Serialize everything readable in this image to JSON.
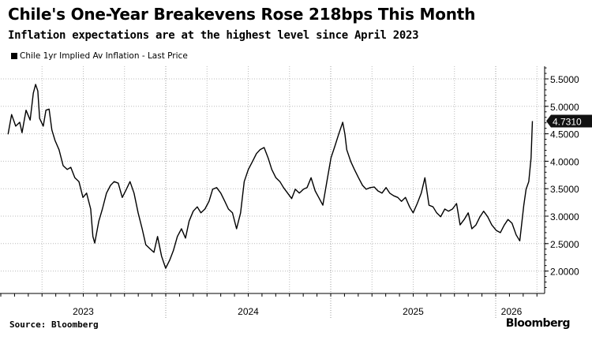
{
  "title": "Chile's One-Year Breakevens Rose 218bps This Month",
  "subtitle": "Inflation expectations are at the highest level since April 2023",
  "source": "Source: Bloomberg",
  "logo": "Bloomberg",
  "chart_data": {
    "type": "line",
    "title": "Chile's One-Year Breakevens Rose 218bps This Month",
    "subtitle": "Inflation expectations are at the highest level since April 2023",
    "legend_position": "top-left",
    "grid": true,
    "y_axis_side": "right",
    "ylim": [
      1.6,
      5.8
    ],
    "y_ticks": [
      "2.0000",
      "2.5000",
      "3.0000",
      "3.5000",
      "4.0000",
      "4.5000",
      "5.0000",
      "5.5000"
    ],
    "y_tick_values": [
      2.0,
      2.5,
      3.0,
      3.5,
      4.0,
      4.5,
      5.0,
      5.5
    ],
    "x_ticks": [
      "2023",
      "2024",
      "2025",
      "2026"
    ],
    "last_price_label": "4.7310",
    "line_color": "#000000",
    "series": [
      {
        "name": "Chile 1yr Implied Av Inflation - Last Price",
        "points": [
          [
            "2023-01-17",
            4.49
          ],
          [
            "2023-01-25",
            4.85
          ],
          [
            "2023-02-03",
            4.64
          ],
          [
            "2023-02-12",
            4.71
          ],
          [
            "2023-02-17",
            4.52
          ],
          [
            "2023-02-26",
            4.93
          ],
          [
            "2023-03-07",
            4.75
          ],
          [
            "2023-03-14",
            5.24
          ],
          [
            "2023-03-19",
            5.4
          ],
          [
            "2023-03-24",
            5.28
          ],
          [
            "2023-03-28",
            4.78
          ],
          [
            "2023-04-05",
            4.64
          ],
          [
            "2023-04-11",
            4.93
          ],
          [
            "2023-04-18",
            4.95
          ],
          [
            "2023-04-24",
            4.57
          ],
          [
            "2023-05-01",
            4.38
          ],
          [
            "2023-05-10",
            4.21
          ],
          [
            "2023-05-19",
            3.92
          ],
          [
            "2023-05-28",
            3.85
          ],
          [
            "2023-06-05",
            3.89
          ],
          [
            "2023-06-14",
            3.7
          ],
          [
            "2023-06-23",
            3.63
          ],
          [
            "2023-07-02",
            3.34
          ],
          [
            "2023-07-10",
            3.42
          ],
          [
            "2023-07-19",
            3.13
          ],
          [
            "2023-07-24",
            2.63
          ],
          [
            "2023-07-28",
            2.51
          ],
          [
            "2023-08-06",
            2.91
          ],
          [
            "2023-08-14",
            3.13
          ],
          [
            "2023-08-23",
            3.42
          ],
          [
            "2023-09-01",
            3.56
          ],
          [
            "2023-09-09",
            3.63
          ],
          [
            "2023-09-18",
            3.6
          ],
          [
            "2023-09-27",
            3.34
          ],
          [
            "2023-10-06",
            3.49
          ],
          [
            "2023-10-14",
            3.63
          ],
          [
            "2023-10-23",
            3.42
          ],
          [
            "2023-11-01",
            3.06
          ],
          [
            "2023-11-10",
            2.77
          ],
          [
            "2023-11-18",
            2.48
          ],
          [
            "2023-11-27",
            2.41
          ],
          [
            "2023-12-06",
            2.34
          ],
          [
            "2023-12-14",
            2.63
          ],
          [
            "2023-12-23",
            2.27
          ],
          [
            "2024-01-01",
            2.05
          ],
          [
            "2024-01-10",
            2.2
          ],
          [
            "2024-01-18",
            2.37
          ],
          [
            "2024-01-27",
            2.63
          ],
          [
            "2024-02-05",
            2.77
          ],
          [
            "2024-02-14",
            2.6
          ],
          [
            "2024-02-22",
            2.91
          ],
          [
            "2024-03-02",
            3.09
          ],
          [
            "2024-03-11",
            3.17
          ],
          [
            "2024-03-19",
            3.06
          ],
          [
            "2024-03-28",
            3.13
          ],
          [
            "2024-04-06",
            3.27
          ],
          [
            "2024-04-14",
            3.49
          ],
          [
            "2024-04-23",
            3.52
          ],
          [
            "2024-05-02",
            3.42
          ],
          [
            "2024-05-11",
            3.27
          ],
          [
            "2024-05-19",
            3.13
          ],
          [
            "2024-05-28",
            3.06
          ],
          [
            "2024-06-06",
            2.77
          ],
          [
            "2024-06-15",
            3.06
          ],
          [
            "2024-06-23",
            3.63
          ],
          [
            "2024-07-02",
            3.85
          ],
          [
            "2024-07-11",
            3.99
          ],
          [
            "2024-07-20",
            4.14
          ],
          [
            "2024-07-28",
            4.21
          ],
          [
            "2024-08-06",
            4.25
          ],
          [
            "2024-08-15",
            4.06
          ],
          [
            "2024-08-23",
            3.85
          ],
          [
            "2024-09-01",
            3.7
          ],
          [
            "2024-09-10",
            3.63
          ],
          [
            "2024-09-18",
            3.52
          ],
          [
            "2024-09-27",
            3.42
          ],
          [
            "2024-10-06",
            3.32
          ],
          [
            "2024-10-14",
            3.49
          ],
          [
            "2024-10-23",
            3.42
          ],
          [
            "2024-11-01",
            3.49
          ],
          [
            "2024-11-09",
            3.52
          ],
          [
            "2024-11-18",
            3.7
          ],
          [
            "2024-11-27",
            3.46
          ],
          [
            "2024-12-05",
            3.34
          ],
          [
            "2024-12-14",
            3.2
          ],
          [
            "2024-12-23",
            3.63
          ],
          [
            "2025-01-01",
            4.06
          ],
          [
            "2025-01-10",
            4.28
          ],
          [
            "2025-01-18",
            4.49
          ],
          [
            "2025-01-27",
            4.71
          ],
          [
            "2025-02-01",
            4.49
          ],
          [
            "2025-02-05",
            4.21
          ],
          [
            "2025-02-14",
            3.99
          ],
          [
            "2025-02-22",
            3.85
          ],
          [
            "2025-03-03",
            3.7
          ],
          [
            "2025-03-12",
            3.56
          ],
          [
            "2025-03-20",
            3.49
          ],
          [
            "2025-03-29",
            3.52
          ],
          [
            "2025-04-07",
            3.53
          ],
          [
            "2025-04-15",
            3.46
          ],
          [
            "2025-04-24",
            3.42
          ],
          [
            "2025-05-03",
            3.52
          ],
          [
            "2025-05-11",
            3.42
          ],
          [
            "2025-05-20",
            3.37
          ],
          [
            "2025-05-29",
            3.34
          ],
          [
            "2025-06-06",
            3.27
          ],
          [
            "2025-06-15",
            3.34
          ],
          [
            "2025-06-24",
            3.17
          ],
          [
            "2025-07-02",
            3.06
          ],
          [
            "2025-07-11",
            3.23
          ],
          [
            "2025-07-20",
            3.42
          ],
          [
            "2025-07-28",
            3.7
          ],
          [
            "2025-08-06",
            3.2
          ],
          [
            "2025-08-15",
            3.17
          ],
          [
            "2025-08-23",
            3.06
          ],
          [
            "2025-09-01",
            2.99
          ],
          [
            "2025-09-10",
            3.13
          ],
          [
            "2025-09-18",
            3.09
          ],
          [
            "2025-09-27",
            3.13
          ],
          [
            "2025-10-06",
            3.23
          ],
          [
            "2025-10-14",
            2.84
          ],
          [
            "2025-10-23",
            2.94
          ],
          [
            "2025-11-01",
            3.06
          ],
          [
            "2025-11-09",
            2.77
          ],
          [
            "2025-11-18",
            2.84
          ],
          [
            "2025-11-27",
            2.99
          ],
          [
            "2025-12-05",
            3.09
          ],
          [
            "2025-12-14",
            2.99
          ],
          [
            "2025-12-23",
            2.84
          ],
          [
            "2026-01-02",
            2.74
          ],
          [
            "2026-01-11",
            2.7
          ],
          [
            "2026-01-20",
            2.84
          ],
          [
            "2026-01-28",
            2.94
          ],
          [
            "2026-02-06",
            2.87
          ],
          [
            "2026-02-15",
            2.66
          ],
          [
            "2026-02-23",
            2.55
          ],
          [
            "2026-03-04",
            3.2
          ],
          [
            "2026-03-09",
            3.49
          ],
          [
            "2026-03-15",
            3.63
          ],
          [
            "2026-03-20",
            4.06
          ],
          [
            "2026-03-23",
            4.731
          ]
        ]
      }
    ]
  }
}
